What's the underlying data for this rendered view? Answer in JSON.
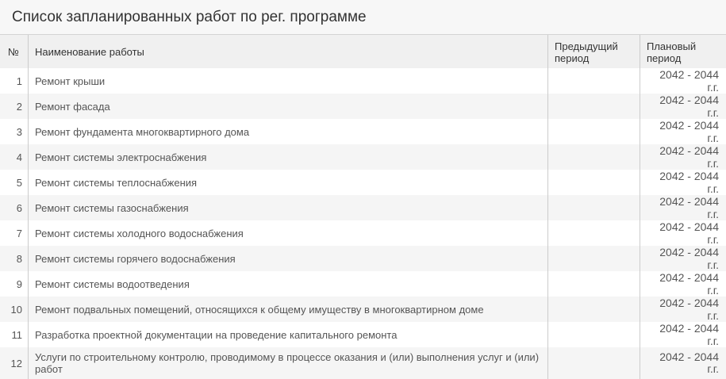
{
  "title": "Список запланированных работ по рег. программе",
  "columns": [
    "№",
    "Наименование работы",
    "Предыдущий период",
    "Плановый период"
  ],
  "rows": [
    {
      "n": "1",
      "name": "Ремонт крыши",
      "prev": "",
      "plan": "2042 - 2044 г.г."
    },
    {
      "n": "2",
      "name": "Ремонт фасада",
      "prev": "",
      "plan": "2042 - 2044 г.г."
    },
    {
      "n": "3",
      "name": "Ремонт фундамента многоквартирного дома",
      "prev": "",
      "plan": "2042 - 2044 г.г."
    },
    {
      "n": "4",
      "name": "Ремонт системы электроснабжения",
      "prev": "",
      "plan": "2042 - 2044 г.г."
    },
    {
      "n": "5",
      "name": "Ремонт системы теплоснабжения",
      "prev": "",
      "plan": "2042 - 2044 г.г."
    },
    {
      "n": "6",
      "name": "Ремонт системы газоснабжения",
      "prev": "",
      "plan": "2042 - 2044 г.г."
    },
    {
      "n": "7",
      "name": "Ремонт системы холодного водоснабжения",
      "prev": "",
      "plan": "2042 - 2044 г.г."
    },
    {
      "n": "8",
      "name": "Ремонт системы горячего водоснабжения",
      "prev": "",
      "plan": "2042 - 2044 г.г."
    },
    {
      "n": "9",
      "name": "Ремонт системы водоотведения",
      "prev": "",
      "plan": "2042 - 2044 г.г."
    },
    {
      "n": "10",
      "name": "Ремонт подвальных помещений, относящихся к общему имуществу в многоквартирном доме",
      "prev": "",
      "plan": "2042 - 2044 г.г."
    },
    {
      "n": "11",
      "name": "Разработка проектной документации на проведение капитального ремонта",
      "prev": "",
      "plan": "2042 - 2044 г.г."
    },
    {
      "n": "12",
      "name": "Услуги по строительному контролю, проводимому в процессе оказания и (или) выполнения услуг и (или) работ",
      "prev": "",
      "plan": "2042 - 2044 г.г."
    }
  ]
}
